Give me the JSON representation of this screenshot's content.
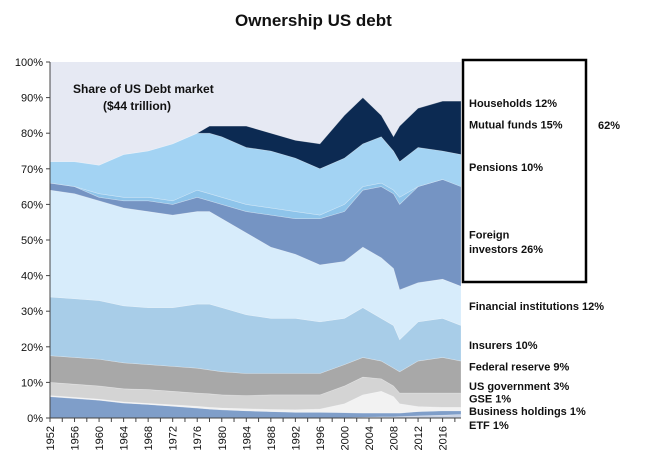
{
  "chart_data": {
    "type": "area",
    "title": "Ownership US debt",
    "inner_title_line1": "Share of US Debt market",
    "inner_title_line2": "($44 trillion)",
    "y_axis": {
      "min": 0,
      "max": 100,
      "ticks": [
        "0%",
        "10%",
        "20%",
        "30%",
        "40%",
        "50%",
        "60%",
        "70%",
        "80%",
        "90%",
        "100%"
      ]
    },
    "x_ticks": [
      "1952",
      "1956",
      "1960",
      "1964",
      "1968",
      "1972",
      "1976",
      "1980",
      "1984",
      "1988",
      "1992",
      "1996",
      "2000",
      "2004",
      "2008",
      "2012",
      "2016"
    ],
    "x": [
      1952,
      1956,
      1960,
      1964,
      1968,
      1972,
      1976,
      1978,
      1980,
      1984,
      1988,
      1992,
      1996,
      2000,
      2003,
      2006,
      2008,
      2009,
      2012,
      2016,
      2019
    ],
    "layers_cumulative_top": [
      {
        "name": "ETF",
        "color": "#c9d3e6",
        "values": [
          0,
          0,
          0,
          0,
          0,
          0,
          0,
          0,
          0,
          0,
          0,
          0,
          0,
          0.1,
          0.2,
          0.3,
          0.3,
          0.4,
          0.6,
          0.8,
          1.0
        ]
      },
      {
        "name": "Business holdings",
        "color": "#7f9ec9",
        "values": [
          6,
          5.5,
          5,
          4.2,
          3.8,
          3.3,
          2.8,
          2.5,
          2.3,
          2,
          1.8,
          1.6,
          1.6,
          1.5,
          1.4,
          1.4,
          1.4,
          1.4,
          1.8,
          2,
          2
        ]
      },
      {
        "name": "GSE",
        "color": "#f2f2f2",
        "values": [
          6.3,
          5.8,
          5.3,
          4.5,
          4.1,
          3.7,
          3.3,
          3,
          2.8,
          2.6,
          2.4,
          2.3,
          2.5,
          4,
          6.5,
          7.5,
          6,
          4,
          3.2,
          3,
          3
        ]
      },
      {
        "name": "US government",
        "color": "#d4d4d4",
        "values": [
          10,
          9.5,
          9,
          8.2,
          8,
          7.5,
          7,
          6.8,
          6.5,
          6.3,
          6.5,
          6.5,
          6.5,
          9,
          11.5,
          11,
          9,
          7,
          7,
          7,
          7
        ]
      },
      {
        "name": "Federal reserve",
        "color": "#a8a8a8",
        "values": [
          17.5,
          17,
          16.5,
          15.5,
          15,
          14.5,
          14,
          13.5,
          13,
          12.5,
          12.5,
          12.5,
          12.5,
          15,
          17,
          16,
          14,
          13,
          16,
          17,
          16
        ]
      },
      {
        "name": "Insurers",
        "color": "#a8cde8",
        "values": [
          34,
          33.5,
          33,
          31.5,
          31,
          31,
          32,
          32,
          31,
          29,
          28,
          28,
          27,
          28,
          31,
          28,
          26,
          22,
          27,
          28,
          26
        ]
      },
      {
        "name": "Financial institutions",
        "color": "#d7ecfb",
        "values": [
          64,
          63,
          61,
          59,
          58,
          57,
          58,
          58,
          56,
          52,
          48,
          46,
          43,
          44,
          48,
          45,
          42,
          36,
          38,
          39,
          37
        ]
      },
      {
        "name": "Foreign investors",
        "color": "#7594c3",
        "values": [
          66,
          65,
          62,
          61,
          61,
          60,
          62,
          61,
          60,
          58,
          57,
          56,
          56,
          58,
          64,
          65,
          63,
          60,
          65,
          67,
          66
        ]
      },
      {
        "name": "Pensions",
        "color": "#8ec4ea",
        "values": [
          66,
          65,
          63,
          62,
          62,
          61,
          64,
          63,
          62,
          60,
          59,
          58,
          57,
          60,
          65,
          66,
          64,
          62,
          65,
          67,
          65
        ]
      },
      {
        "name": "Mutual funds",
        "color": "#a3d3f3",
        "values": [
          72,
          72,
          71,
          74,
          75,
          77,
          80,
          80,
          79,
          76,
          75,
          73,
          70,
          73,
          77,
          79,
          75,
          72,
          76,
          75,
          74
        ]
      },
      {
        "name": "Households",
        "color": "#0c2a52",
        "values": [
          72,
          72,
          71,
          74,
          75,
          77,
          80,
          82,
          82,
          82,
          80,
          78,
          77,
          85,
          90,
          85,
          79,
          82,
          87,
          89,
          89
        ]
      }
    ],
    "labels": [
      {
        "text": "Households 12%",
        "value": 88.5
      },
      {
        "text": "Mutual funds 15%",
        "value": 82.5
      },
      {
        "text": "Pensions 10%",
        "value": 70.5
      },
      {
        "text": "Foreign",
        "value": 51.5
      },
      {
        "text": "investors 26%",
        "value": 47.5
      },
      {
        "text": "Financial institutions 12%",
        "value": 31.5
      },
      {
        "text": "Insurers 10%",
        "value": 20.5
      },
      {
        "text": "Federal reserve 9%",
        "value": 14.5
      },
      {
        "text": "US government 3%",
        "value": 9
      },
      {
        "text": "GSE 1%",
        "value": 5.5
      },
      {
        "text": "Business holdings 1%",
        "value": 2
      },
      {
        "text": "ETF 1%",
        "value": -2
      }
    ],
    "bracket_label": "62%",
    "plot_background": "#e6e9f3"
  }
}
